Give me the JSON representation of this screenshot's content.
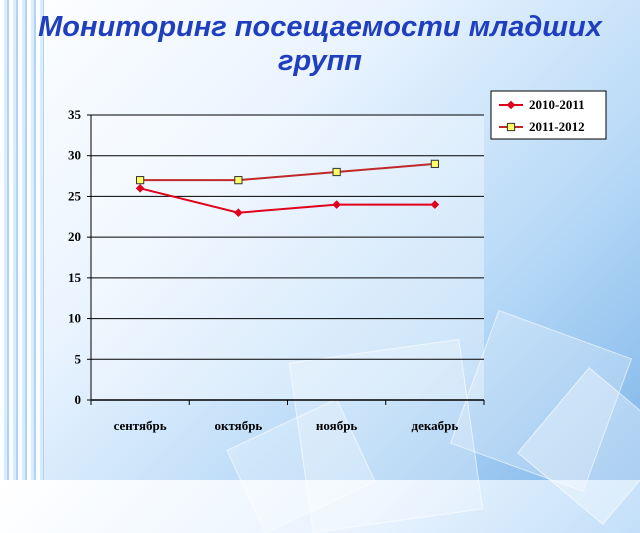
{
  "chart_data": {
    "type": "line",
    "title": "Мониторинг посещаемости младших групп",
    "categories": [
      "сентябрь",
      "октябрь",
      "ноябрь",
      "декабрь"
    ],
    "series": [
      {
        "name": "2010-2011",
        "values": [
          26,
          23,
          24,
          24
        ],
        "color": "#e0001c",
        "marker": "diamond"
      },
      {
        "name": "2011-2012",
        "values": [
          27,
          27,
          28,
          29
        ],
        "color": "#c0282a",
        "marker": "square",
        "marker_fill": "#ffff66"
      }
    ],
    "ylim": [
      0,
      35
    ],
    "yticks": [
      0,
      5,
      10,
      15,
      20,
      25,
      30,
      35
    ],
    "grid": true,
    "legend": "top-right"
  }
}
